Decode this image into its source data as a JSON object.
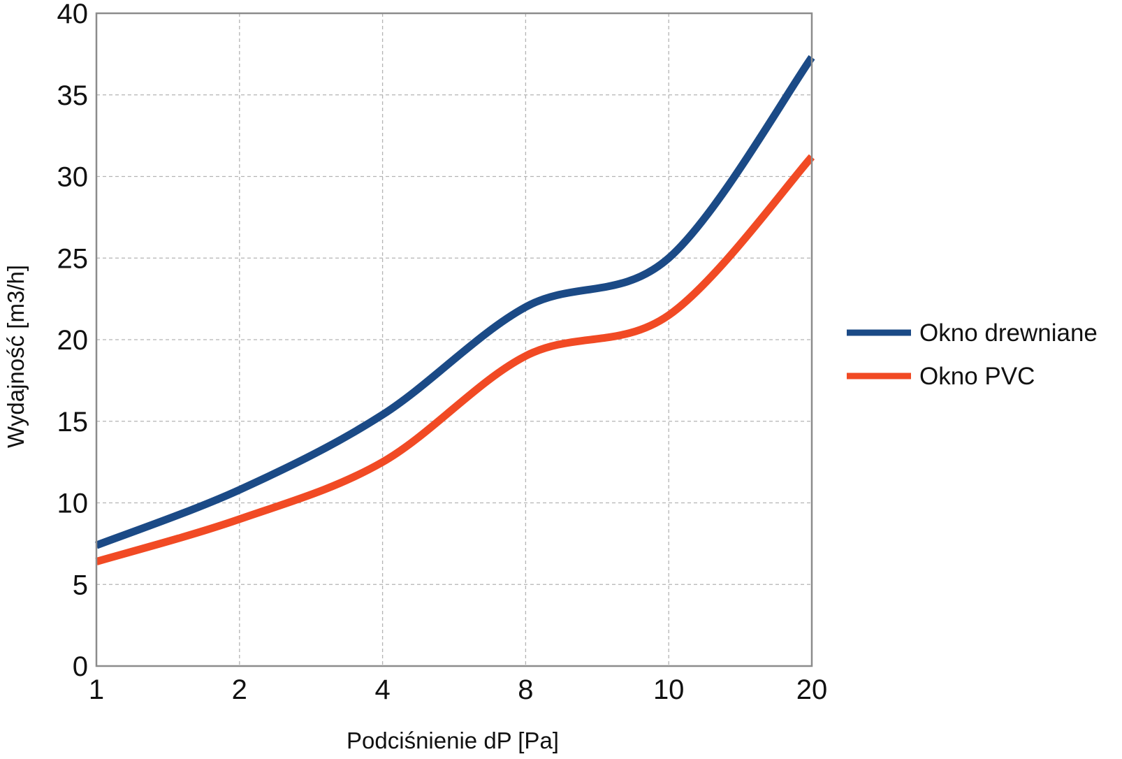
{
  "chart_data": {
    "type": "line",
    "title": "",
    "xlabel": "Podciśnienie dP [Pa]",
    "ylabel": "Wydajność [m3/h]",
    "categories": [
      "1",
      "2",
      "4",
      "8",
      "10",
      "20"
    ],
    "ylim": [
      0,
      40
    ],
    "yticks": [
      "0",
      "5",
      "10",
      "15",
      "20",
      "25",
      "30",
      "35",
      "40"
    ],
    "grid": true,
    "legend_position": "right",
    "series": [
      {
        "name": "Okno drewniane",
        "color": "#1b4a86",
        "values": [
          7.4,
          10.8,
          15.4,
          22.0,
          25.0,
          37.3
        ]
      },
      {
        "name": "Okno PVC",
        "color": "#f14a24",
        "values": [
          6.4,
          9.0,
          12.5,
          19.0,
          21.5,
          31.2
        ]
      }
    ]
  }
}
